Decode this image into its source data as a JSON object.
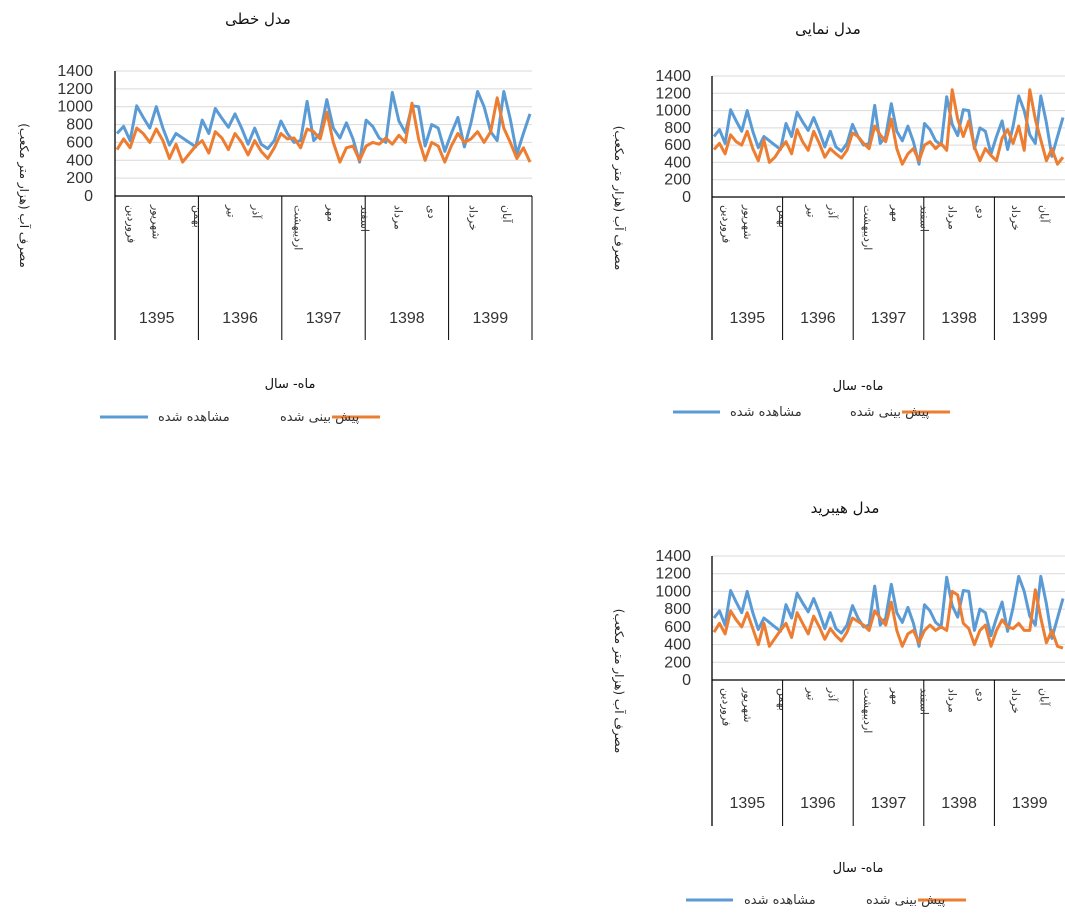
{
  "chart_data": [
    {
      "type": "line",
      "title": "مدل خطی",
      "xlabel": "ماه- سال",
      "ylabel": "مصرف آب (هزار متر مکعب)",
      "ylim": [
        0,
        1400
      ],
      "yticks": [
        "1400",
        "1200",
        "1000",
        "800",
        "600",
        "400",
        "200",
        "0"
      ],
      "years": [
        "1395",
        "1396",
        "1397",
        "1398",
        "1399"
      ],
      "month_labels": [
        "فروردین",
        "شهریور",
        "بهمن",
        "تیر",
        "آذر",
        "اردیبهشت",
        "مهر",
        "اسفند",
        "مرداد",
        "دی",
        "خرداد",
        "آبان"
      ],
      "legend": [
        "مشاهده شده",
        "پیش بینی شده"
      ],
      "grid": true,
      "series": [
        {
          "name": "مشاهده شده",
          "color": "#5b9bd5",
          "values": [
            700,
            780,
            620,
            1010,
            880,
            760,
            1000,
            760,
            570,
            700,
            650,
            600,
            550,
            850,
            700,
            980,
            870,
            770,
            920,
            760,
            580,
            760,
            580,
            530,
            620,
            840,
            700,
            600,
            620,
            1060,
            620,
            700,
            1080,
            760,
            650,
            820,
            640,
            380,
            850,
            780,
            650,
            600,
            1160,
            840,
            710,
            1010,
            1000,
            560,
            800,
            760,
            500,
            700,
            880,
            550,
            820,
            1170,
            1000,
            720,
            620,
            1170,
            860,
            470,
            700,
            920
          ]
        },
        {
          "name": "پیش بینی شده",
          "color": "#ed7d31",
          "values": [
            520,
            640,
            540,
            760,
            700,
            600,
            750,
            620,
            420,
            580,
            380,
            470,
            560,
            620,
            480,
            720,
            650,
            520,
            700,
            600,
            460,
            620,
            500,
            420,
            540,
            700,
            640,
            650,
            540,
            750,
            720,
            640,
            940,
            600,
            380,
            540,
            560,
            400,
            560,
            600,
            580,
            650,
            580,
            680,
            600,
            1040,
            640,
            400,
            600,
            560,
            380,
            560,
            700,
            600,
            640,
            720,
            600,
            720,
            1100,
            760,
            600,
            420,
            540,
            380
          ]
        }
      ]
    },
    {
      "type": "line",
      "title": "مدل نمایی",
      "xlabel": "ماه- سال",
      "ylabel": "مصرف آب (هزار متر مکعب)",
      "ylim": [
        0,
        1400
      ],
      "yticks": [
        "1400",
        "1200",
        "1000",
        "800",
        "600",
        "400",
        "200",
        "0"
      ],
      "years": [
        "1395",
        "1396",
        "1397",
        "1398",
        "1399"
      ],
      "month_labels": [
        "فروردین",
        "شهریور",
        "بهمن",
        "تیر",
        "آذر",
        "اردیبهشت",
        "مهر",
        "اسفند",
        "مرداد",
        "دی",
        "خرداد",
        "آبان"
      ],
      "legend": [
        "مشاهده شده",
        "پیش بینی شده"
      ],
      "grid": true,
      "series": [
        {
          "name": "مشاهده شده",
          "color": "#5b9bd5",
          "values": [
            700,
            780,
            620,
            1010,
            880,
            760,
            1000,
            760,
            570,
            700,
            650,
            600,
            550,
            850,
            700,
            980,
            870,
            770,
            920,
            760,
            580,
            760,
            580,
            530,
            620,
            840,
            700,
            600,
            620,
            1060,
            620,
            700,
            1080,
            760,
            650,
            820,
            640,
            380,
            850,
            780,
            650,
            600,
            1160,
            840,
            710,
            1010,
            1000,
            560,
            800,
            760,
            500,
            700,
            880,
            550,
            820,
            1170,
            1000,
            720,
            620,
            1170,
            860,
            470,
            700,
            920
          ]
        },
        {
          "name": "پیش بینی شده",
          "color": "#ed7d31",
          "values": [
            550,
            620,
            500,
            720,
            640,
            600,
            760,
            560,
            420,
            660,
            400,
            460,
            560,
            640,
            500,
            780,
            640,
            540,
            760,
            620,
            460,
            560,
            500,
            450,
            540,
            740,
            700,
            620,
            560,
            820,
            720,
            640,
            900,
            560,
            380,
            500,
            560,
            420,
            600,
            640,
            560,
            620,
            540,
            1240,
            900,
            700,
            880,
            580,
            420,
            560,
            480,
            420,
            680,
            780,
            620,
            820,
            540,
            1240,
            900,
            660,
            420,
            560,
            380,
            460
          ]
        }
      ]
    },
    {
      "type": "line",
      "title": "مدل هیبرید",
      "xlabel": "ماه- سال",
      "ylabel": "مصرف آب (هزار متر مکعب)",
      "ylim": [
        0,
        1400
      ],
      "yticks": [
        "1400",
        "1200",
        "1000",
        "800",
        "600",
        "400",
        "200",
        "0"
      ],
      "years": [
        "1395",
        "1396",
        "1397",
        "1398",
        "1399"
      ],
      "month_labels": [
        "فروردین",
        "شهریور",
        "بهمن",
        "تیر",
        "آذر",
        "اردیبهشت",
        "مهر",
        "اسفند",
        "مرداد",
        "دی",
        "خرداد",
        "آبان"
      ],
      "legend": [
        "مشاهده شده",
        "پیش بینی شده"
      ],
      "grid": true,
      "series": [
        {
          "name": "مشاهده شده",
          "color": "#5b9bd5",
          "values": [
            700,
            780,
            620,
            1010,
            880,
            760,
            1000,
            760,
            570,
            700,
            650,
            600,
            550,
            850,
            700,
            980,
            870,
            770,
            920,
            760,
            580,
            760,
            580,
            530,
            620,
            840,
            700,
            600,
            620,
            1060,
            620,
            700,
            1080,
            760,
            650,
            820,
            640,
            380,
            850,
            780,
            650,
            600,
            1160,
            840,
            710,
            1010,
            1000,
            560,
            800,
            760,
            500,
            700,
            880,
            550,
            820,
            1170,
            1000,
            720,
            620,
            1170,
            860,
            470,
            700,
            920
          ]
        },
        {
          "name": "پیش بینی شده",
          "color": "#ed7d31",
          "values": [
            540,
            640,
            520,
            780,
            680,
            600,
            760,
            580,
            400,
            640,
            380,
            470,
            560,
            640,
            480,
            760,
            640,
            520,
            720,
            600,
            460,
            580,
            500,
            440,
            540,
            700,
            660,
            620,
            560,
            780,
            700,
            620,
            880,
            560,
            380,
            520,
            560,
            420,
            560,
            620,
            560,
            600,
            560,
            1000,
            960,
            640,
            580,
            400,
            560,
            620,
            380,
            560,
            680,
            600,
            580,
            640,
            560,
            560,
            1020,
            700,
            420,
            560,
            380,
            360
          ]
        }
      ]
    }
  ]
}
